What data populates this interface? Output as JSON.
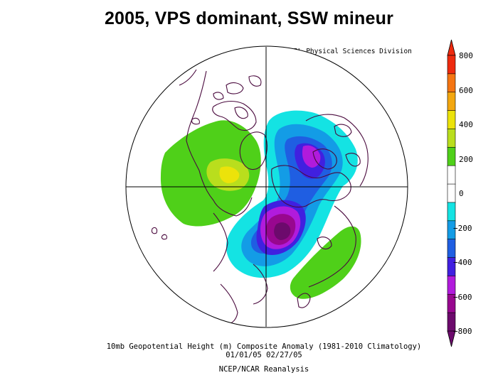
{
  "title": "2005, VPS dominant, SSW mineur",
  "credit": "NOAA/ESRL Physical Sciences Division",
  "caption": {
    "line1": "10mb Geopotential Height (m) Composite Anomaly (1981-2010 Climatology)",
    "line2": "01/01/05 02/27/05",
    "line3": "NCEP/NCAR Reanalysis"
  },
  "colorbar": {
    "ticks": [
      "800",
      "600",
      "400",
      "200",
      "0",
      "−200",
      "−400",
      "−600",
      "−800"
    ],
    "colors": [
      "#ee2a0e",
      "#f57512",
      "#f3a70f",
      "#ece30a",
      "#b9de1d",
      "#4fd019",
      "#ffffff",
      "#ffffff",
      "#14e3e3",
      "#139ce6",
      "#1f5ee2",
      "#4020e0",
      "#b11bdc",
      "#98078f",
      "#6c0a6c"
    ]
  },
  "map": {
    "projection": "polar-stereographic",
    "coastline_color": "#4a0a3e",
    "positive_anomaly_colors": [
      "#4fd019",
      "#b9de1d",
      "#ece30a"
    ],
    "negative_anomaly_colors": [
      "#14e3e3",
      "#139ce6",
      "#1f5ee2",
      "#4020e0",
      "#b11bdc",
      "#98078f",
      "#6c0a6c"
    ]
  }
}
